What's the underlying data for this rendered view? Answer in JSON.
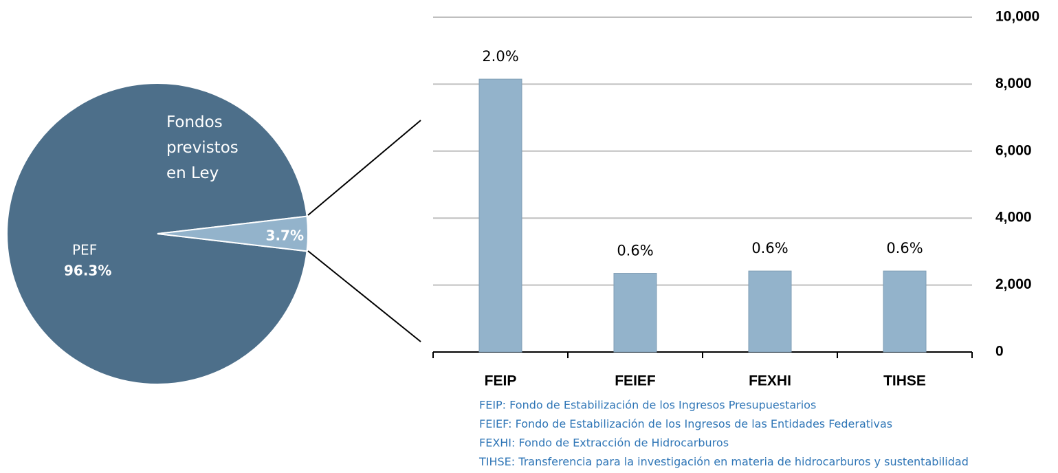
{
  "chart_data": [
    {
      "type": "pie",
      "categories": [
        "PEF",
        "Fondos previstos en Ley"
      ],
      "values": [
        96.3,
        3.7
      ],
      "value_labels": [
        "96.3%",
        "3.7%"
      ],
      "colors": [
        "#4d6f8a",
        "#93b3cb"
      ]
    },
    {
      "type": "bar",
      "categories": [
        "FEIP",
        "FEIEF",
        "FEXHI",
        "TIHSE"
      ],
      "values": [
        8150,
        2350,
        2420,
        2420
      ],
      "annotations": [
        "2.0%",
        "0.6%",
        "0.6%",
        "0.6%"
      ],
      "color": "#93b3cb",
      "ylim": [
        0,
        10000
      ],
      "yticks": [
        0,
        {
          "value": 2000,
          "label": "2,000"
        },
        {
          "value": 4000,
          "label": "4,000"
        },
        {
          "value": 6000,
          "label": "6,000"
        },
        {
          "value": 8000,
          "label": "8,000"
        },
        {
          "value": 10000,
          "label": "10,000"
        }
      ],
      "grid": true,
      "footnotes": [
        "FEIP: Fondo de Estabilización de los Ingresos Presupuestarios",
        "FEIEF: Fondo de Estabilización de los Ingresos de las Entidades Federativas",
        "FEXHI: Fondo de Extracción de Hidrocarburos",
        "TIHSE: Transferencia para la investigación en materia de hidrocarburos y sustentabilidad"
      ]
    }
  ]
}
